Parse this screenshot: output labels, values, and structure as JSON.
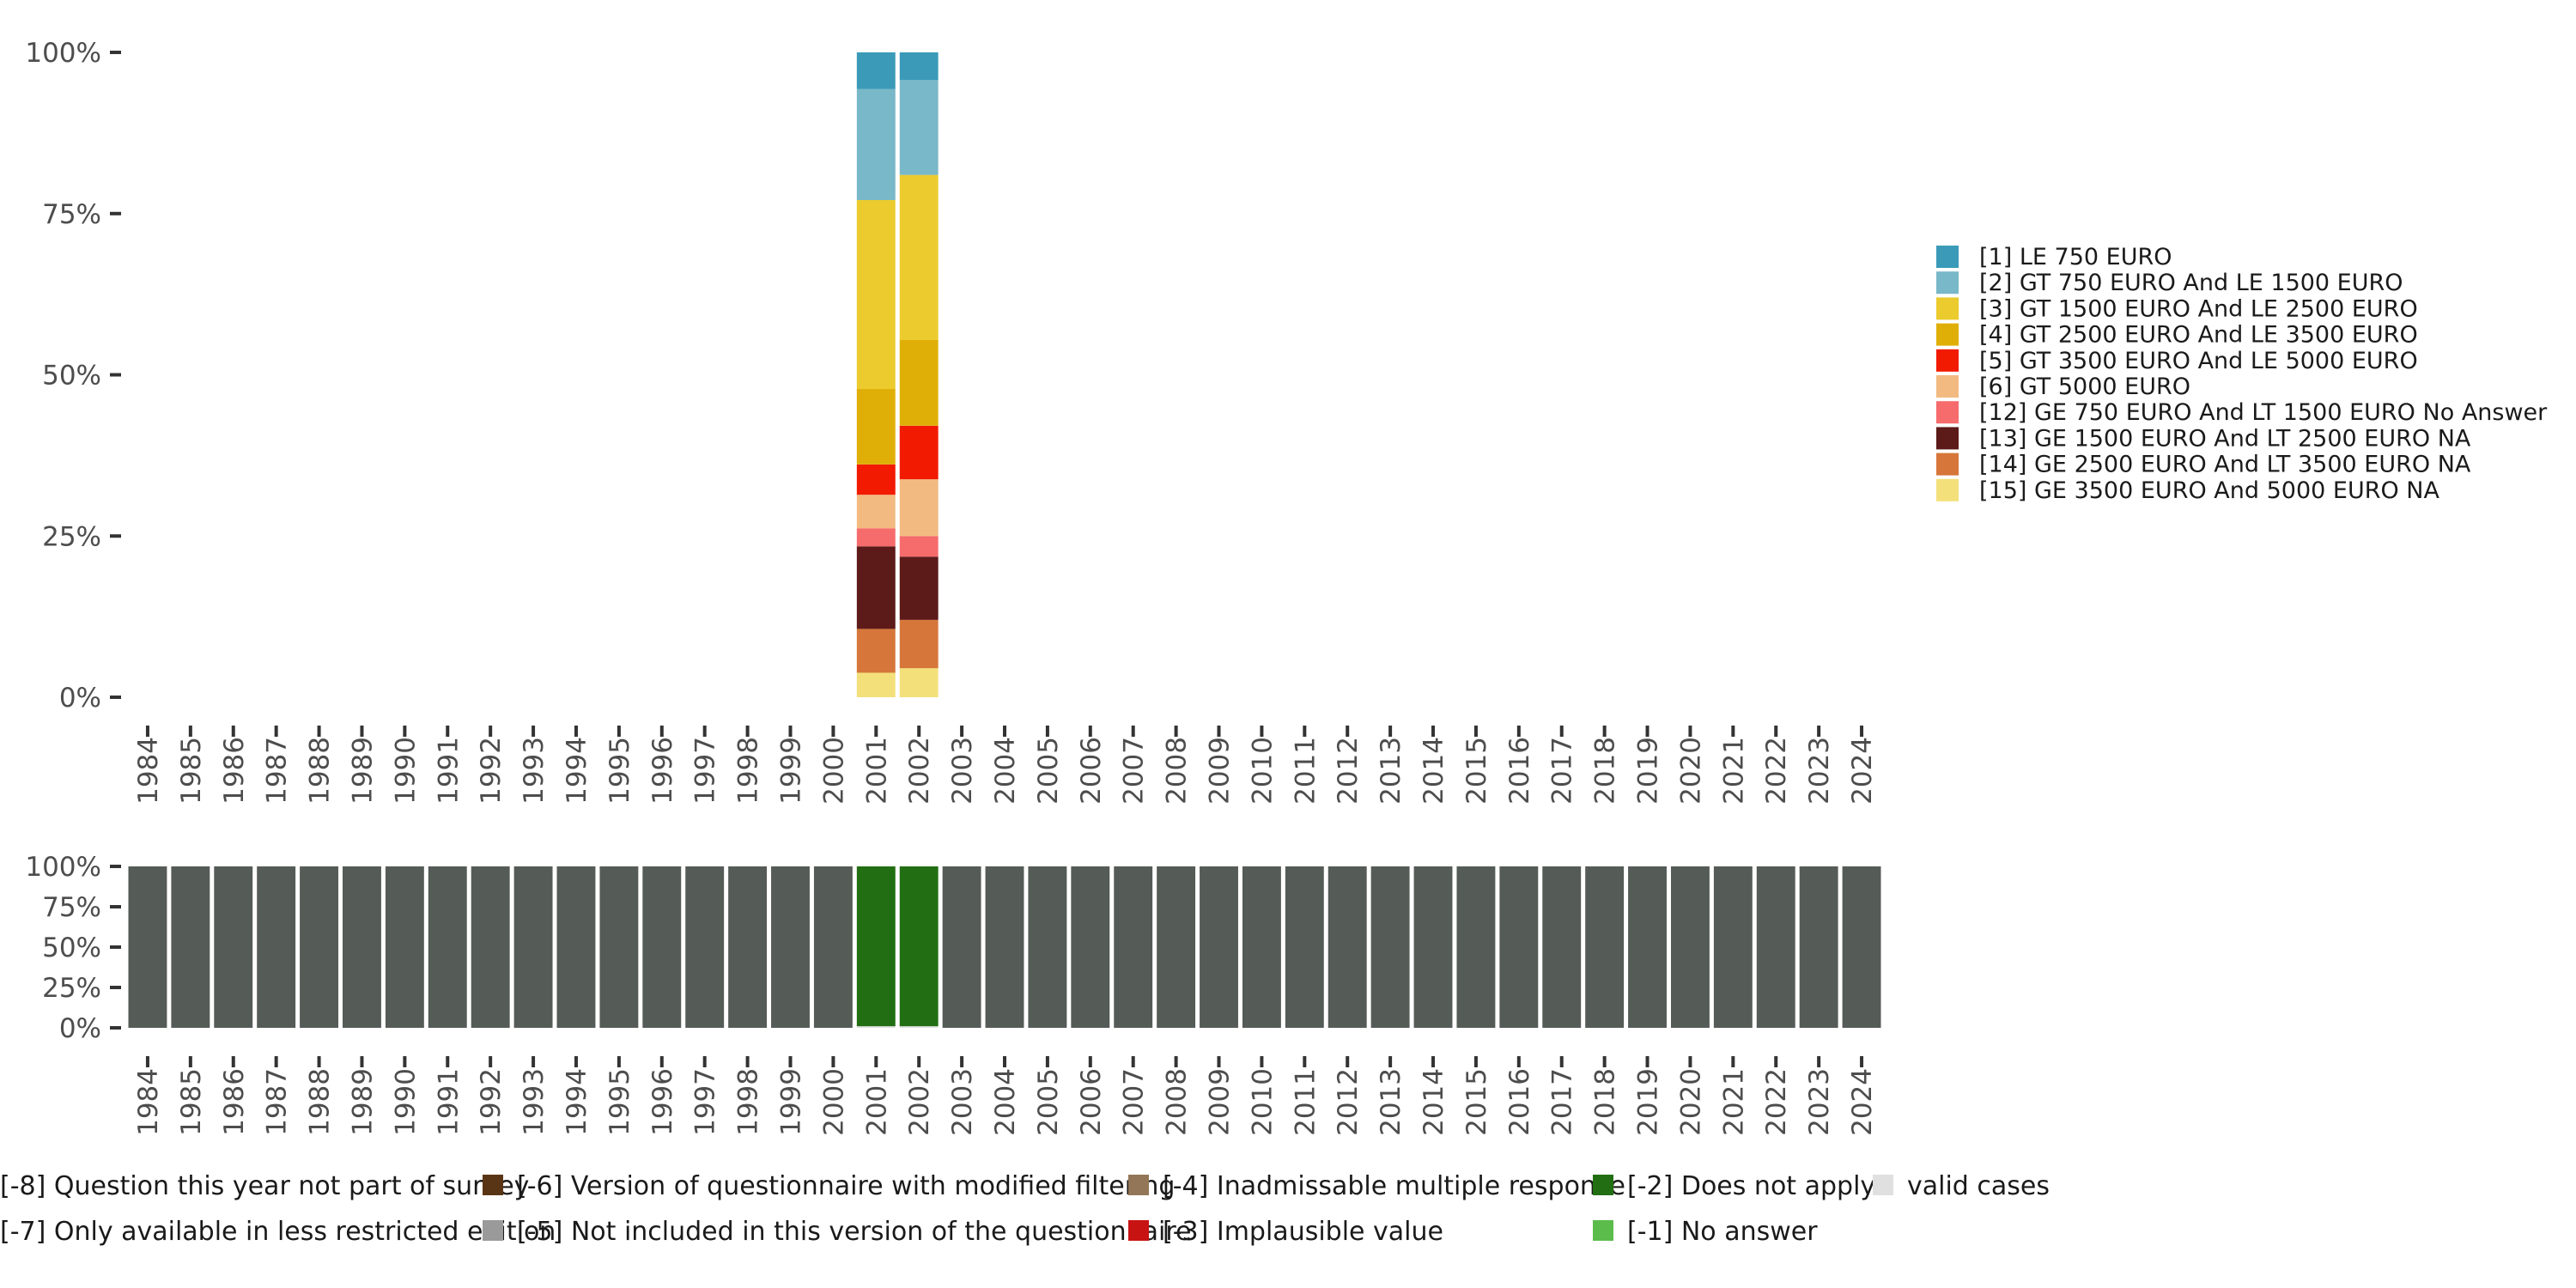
{
  "chart_data": [
    {
      "type": "bar",
      "stacked": true,
      "name": "valid-answers-chart",
      "title": "",
      "xlabel": "",
      "ylabel": "",
      "ylim": [
        0,
        100
      ],
      "yticks": [
        "0%",
        "25%",
        "50%",
        "75%",
        "100%"
      ],
      "categories": [
        "1984",
        "1985",
        "1986",
        "1987",
        "1988",
        "1989",
        "1990",
        "1991",
        "1992",
        "1993",
        "1994",
        "1995",
        "1996",
        "1997",
        "1998",
        "1999",
        "2000",
        "2001",
        "2002",
        "2003",
        "2004",
        "2005",
        "2006",
        "2007",
        "2008",
        "2009",
        "2010",
        "2011",
        "2012",
        "2013",
        "2014",
        "2015",
        "2016",
        "2017",
        "2018",
        "2019",
        "2020",
        "2021",
        "2022",
        "2023",
        "2024"
      ],
      "stack_order_bottom_to_top": [
        "[15] GE 3500 EURO And 5000 EURO NA",
        "[14] GE 2500 EURO And LT 3500 EURO NA",
        "[13] GE 1500 EURO And LT 2500 EURO NA",
        "[12] GE 750 EURO And LT 1500 EURO No Answer",
        "[6] GT 5000 EURO",
        "[5] GT 3500 EURO And LE 5000 EURO",
        "[4] GT 2500 EURO And LE 3500 EURO",
        "[3] GT 1500 EURO And LE 2500 EURO",
        "[2] GT 750 EURO And LE 1500 EURO",
        "[1] LE 750 EURO"
      ],
      "series": [
        {
          "name": "[1] LE 750 EURO",
          "color": "#3b9ab8",
          "values": {
            "2001": 5.7,
            "2002": 4.3
          }
        },
        {
          "name": "[2] GT 750 EURO And LE 1500 EURO",
          "color": "#79b8c8",
          "values": {
            "2001": 17.2,
            "2002": 14.7
          }
        },
        {
          "name": "[3] GT 1500 EURO And LE 2500 EURO",
          "color": "#ebcb2d",
          "values": {
            "2001": 29.3,
            "2002": 25.6
          }
        },
        {
          "name": "[4] GT 2500 EURO And LE 3500 EURO",
          "color": "#e0af07",
          "values": {
            "2001": 11.7,
            "2002": 13.3
          }
        },
        {
          "name": "[5] GT 3500 EURO And LE 5000 EURO",
          "color": "#f21a00",
          "values": {
            "2001": 4.7,
            "2002": 8.3
          }
        },
        {
          "name": "[6] GT 5000 EURO",
          "color": "#f2ba80",
          "values": {
            "2001": 5.2,
            "2002": 8.8
          }
        },
        {
          "name": "[12] GE 750 EURO And LT 1500 EURO No Answer",
          "color": "#f66b6b",
          "values": {
            "2001": 2.8,
            "2002": 3.2
          }
        },
        {
          "name": "[13] GE 1500 EURO And LT 2500 EURO NA",
          "color": "#5c1a18",
          "values": {
            "2001": 12.8,
            "2002": 9.8
          }
        },
        {
          "name": "[14] GE 2500 EURO And LT 3500 EURO NA",
          "color": "#d6763a",
          "values": {
            "2001": 6.8,
            "2002": 7.5
          }
        },
        {
          "name": "[15] GE 3500 EURO And 5000 EURO NA",
          "color": "#f3e07a",
          "values": {
            "2001": 3.8,
            "2002": 4.5
          }
        }
      ],
      "legend_position": "right"
    },
    {
      "type": "bar",
      "stacked": true,
      "name": "missing-categories-chart",
      "title": "",
      "xlabel": "",
      "ylabel": "",
      "ylim": [
        0,
        100
      ],
      "yticks": [
        "0%",
        "25%",
        "50%",
        "75%",
        "100%"
      ],
      "categories": [
        "1984",
        "1985",
        "1986",
        "1987",
        "1988",
        "1989",
        "1990",
        "1991",
        "1992",
        "1993",
        "1994",
        "1995",
        "1996",
        "1997",
        "1998",
        "1999",
        "2000",
        "2001",
        "2002",
        "2003",
        "2004",
        "2005",
        "2006",
        "2007",
        "2008",
        "2009",
        "2010",
        "2011",
        "2012",
        "2013",
        "2014",
        "2015",
        "2016",
        "2017",
        "2018",
        "2019",
        "2020",
        "2021",
        "2022",
        "2023",
        "2024"
      ],
      "series": [
        {
          "name": "valid cases",
          "color": "#e0e0e0",
          "values": {
            "2001": 1.0,
            "2002": 1.0
          }
        },
        {
          "name": "[-2] Does not apply",
          "color": "#216f12",
          "values": {
            "2001": 99.0,
            "2002": 99.0
          }
        },
        {
          "name": "[-8] Question this year not part of survey",
          "color": "#555b56",
          "values": {
            "1984": 100,
            "1985": 100,
            "1986": 100,
            "1987": 100,
            "1988": 100,
            "1989": 100,
            "1990": 100,
            "1991": 100,
            "1992": 100,
            "1993": 100,
            "1994": 100,
            "1995": 100,
            "1996": 100,
            "1997": 100,
            "1998": 100,
            "1999": 100,
            "2000": 100,
            "2003": 100,
            "2004": 100,
            "2005": 100,
            "2006": 100,
            "2007": 100,
            "2008": 100,
            "2009": 100,
            "2010": 100,
            "2011": 100,
            "2012": 100,
            "2013": 100,
            "2014": 100,
            "2015": 100,
            "2016": 100,
            "2017": 100,
            "2018": 100,
            "2019": 100,
            "2020": 100,
            "2021": 100,
            "2022": 100,
            "2023": 100,
            "2024": 100
          }
        }
      ],
      "legend_position": "bottom",
      "legend": [
        {
          "label": "[-8] Question this year not part of survey",
          "color": "#555b56"
        },
        {
          "label": "[-7] Only available in less restricted edition",
          "color": "#7f7f7f"
        },
        {
          "label": "[-6] Version of questionnaire with modified filtering",
          "color": "#5a3515"
        },
        {
          "label": "[-5] Not included in this version of the questionnaire",
          "color": "#9a9a9a"
        },
        {
          "label": "[-4] Inadmissable multiple response",
          "color": "#937657"
        },
        {
          "label": "[-3] Implausible value",
          "color": "#c81313"
        },
        {
          "label": "[-2] Does not apply",
          "color": "#216f12"
        },
        {
          "label": "[-1] No answer",
          "color": "#5cbc4b"
        },
        {
          "label": "valid cases",
          "color": "#e0e0e0"
        }
      ]
    }
  ]
}
